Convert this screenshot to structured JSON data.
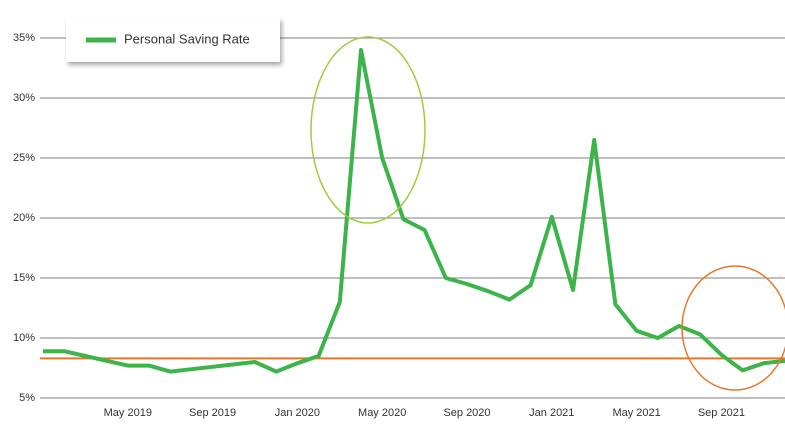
{
  "chart_data": {
    "type": "line",
    "categories": [
      null,
      null,
      null,
      null,
      "May 2019",
      null,
      null,
      null,
      "Sep 2019",
      null,
      null,
      null,
      "Jan 2020",
      null,
      null,
      null,
      "May 2020",
      null,
      null,
      null,
      "Sep 2020",
      null,
      null,
      null,
      "Jan 2021",
      null,
      null,
      null,
      "May 2021",
      null,
      null,
      null,
      "Sep 2021",
      null,
      null,
      null
    ],
    "series": [
      {
        "name": "Personal Saving Rate",
        "color": "#3cb44a",
        "values": [
          8.9,
          8.9,
          8.5,
          8.1,
          7.7,
          7.7,
          7.2,
          7.4,
          7.6,
          7.8,
          8.0,
          7.2,
          7.9,
          8.5,
          13.0,
          34.0,
          25.0,
          19.9,
          19.0,
          15.0,
          14.5,
          13.9,
          13.2,
          14.4,
          20.1,
          14.0,
          26.5,
          12.8,
          10.6,
          10.0,
          11.0,
          10.3,
          8.6,
          7.3,
          7.9,
          8.1
        ]
      }
    ],
    "reference_line": {
      "value": 8.3,
      "color": "#e8772e"
    },
    "ylim": [
      5,
      35
    ],
    "yticks": [
      {
        "value": 5,
        "label": "5%"
      },
      {
        "value": 10,
        "label": "10%"
      },
      {
        "value": 15,
        "label": "15%"
      },
      {
        "value": 20,
        "label": "20%"
      },
      {
        "value": 25,
        "label": "25%"
      },
      {
        "value": 30,
        "label": "30%"
      },
      {
        "value": 35,
        "label": "35%"
      }
    ],
    "grid": true,
    "legend": "top-left"
  }
}
